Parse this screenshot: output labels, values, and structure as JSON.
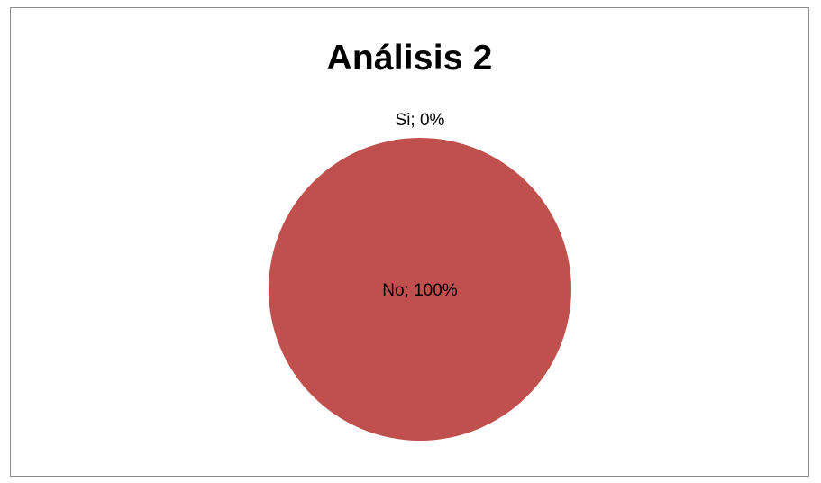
{
  "chart_data": {
    "type": "pie",
    "title": "Análisis 2",
    "categories": [
      "Si",
      "No"
    ],
    "values": [
      0,
      100
    ],
    "labels": [
      "Si; 0%",
      "No; 100%"
    ],
    "colors": [
      "#4f81bd",
      "#c0504d"
    ],
    "legend": "none"
  }
}
